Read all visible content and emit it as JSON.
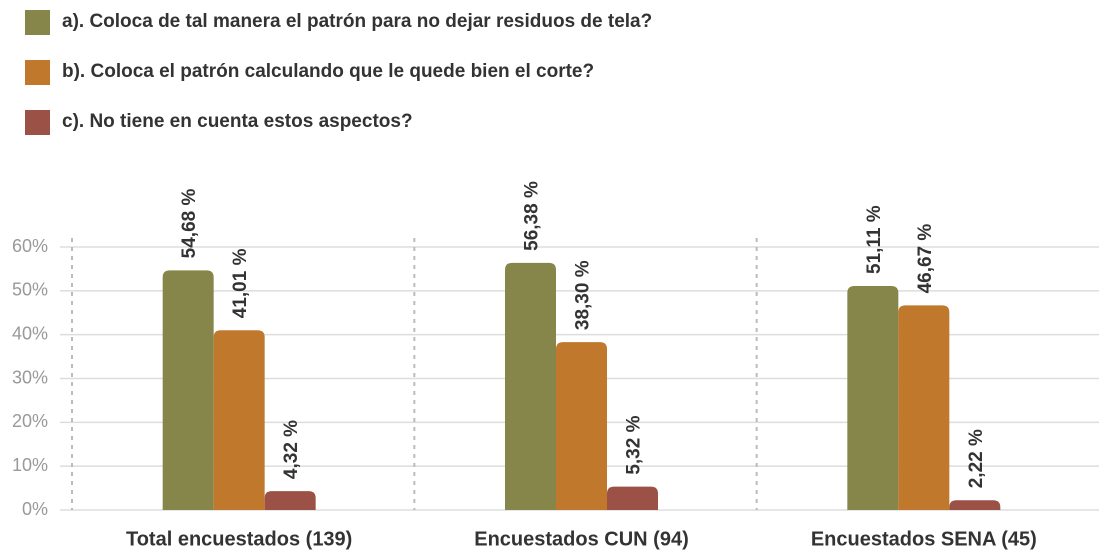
{
  "chart_data": {
    "type": "bar",
    "categories": [
      "Total encuestados (139)",
      "Encuestados CUN (94)",
      "Encuestados SENA (45)"
    ],
    "series": [
      {
        "name": "a). Coloca de tal manera el patrón para no dejar residuos de tela?",
        "color": "#87864a",
        "values": [
          54.68,
          56.38,
          51.11
        ],
        "value_labels": [
          "54,68 %",
          "56,38 %",
          "51,11 %"
        ]
      },
      {
        "name": "b). Coloca el patrón calculando que le quede bien el corte?",
        "color": "#c0782c",
        "values": [
          41.01,
          38.3,
          46.67
        ],
        "value_labels": [
          "41,01 %",
          "38,30 %",
          "46,67 %"
        ]
      },
      {
        "name": "c). No tiene en cuenta estos aspectos?",
        "color": "#9c5147",
        "values": [
          4.32,
          5.32,
          2.22
        ],
        "value_labels": [
          "4,32 %",
          "5,32 %",
          "2,22 %"
        ]
      }
    ],
    "ylim": [
      0,
      60
    ],
    "yticks": [
      {
        "value": 0,
        "label": "0%"
      },
      {
        "value": 10,
        "label": "10%"
      },
      {
        "value": 20,
        "label": "20%"
      },
      {
        "value": 30,
        "label": "30%"
      },
      {
        "value": 40,
        "label": "40%"
      },
      {
        "value": 50,
        "label": "50%"
      },
      {
        "value": 60,
        "label": "60%"
      }
    ],
    "grid": true
  }
}
